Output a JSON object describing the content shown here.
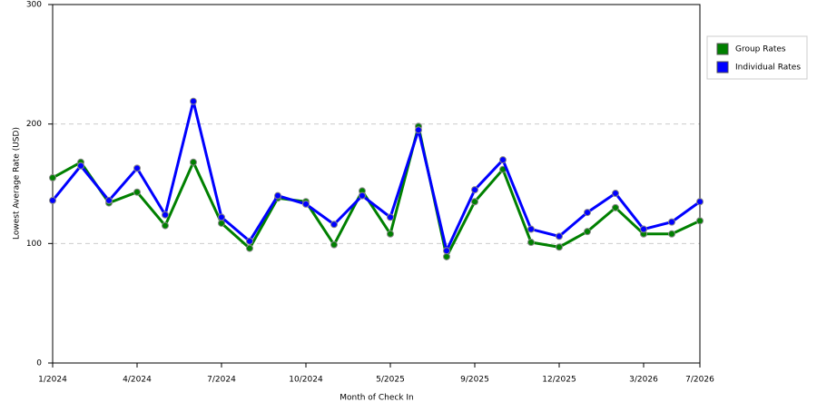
{
  "chart_data": {
    "type": "line",
    "x_label": "Month of Check In",
    "y_label": "Lowest Average Rate (USD)",
    "categories": [
      "1/2024",
      null,
      null,
      "4/2024",
      null,
      null,
      "7/2024",
      null,
      null,
      "10/2024",
      null,
      null,
      "5/2025",
      null,
      null,
      "9/2025",
      null,
      null,
      "12/2025",
      null,
      null,
      "3/2026",
      null,
      "7/2026"
    ],
    "series": [
      {
        "name": "Group Rates",
        "color": "#008000",
        "values": [
          155,
          168,
          134,
          143,
          115,
          168,
          117,
          96,
          138,
          135,
          99,
          144,
          108,
          198,
          89,
          135,
          162,
          101,
          97,
          110,
          130,
          108,
          108,
          119
        ]
      },
      {
        "name": "Individual Rates",
        "color": "#0000ff",
        "values": [
          136,
          165,
          136,
          163,
          124,
          219,
          122,
          102,
          140,
          133,
          116,
          140,
          122,
          195,
          94,
          145,
          170,
          112,
          106,
          126,
          142,
          112,
          118,
          135
        ]
      }
    ],
    "ylim": [
      0,
      300
    ],
    "yticks": [
      0,
      100,
      200,
      300
    ],
    "grid": true,
    "legend": "right"
  }
}
